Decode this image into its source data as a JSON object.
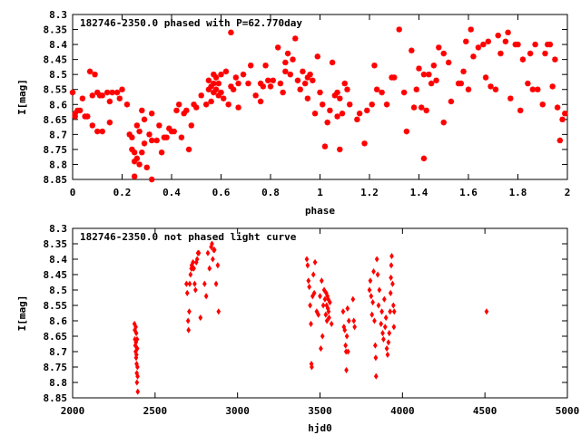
{
  "chart_data": [
    {
      "type": "scatter",
      "title": "182746-2350.0 phased with P=62.770day",
      "xlabel": "phase",
      "ylabel": "I[mag]",
      "xlim": [
        0,
        2
      ],
      "ylim": [
        8.85,
        8.3
      ],
      "y_inverted": true,
      "grid": false,
      "color": "#ff0000",
      "marker": "asterisk",
      "x_ticks": [
        "0",
        "0.2",
        "0.4",
        "0.6",
        "0.8",
        "1",
        "1.2",
        "1.4",
        "1.6",
        "1.8",
        "2"
      ],
      "y_ticks": [
        "8.3",
        "8.35",
        "8.4",
        "8.45",
        "8.5",
        "8.55",
        "8.6",
        "8.65",
        "8.7",
        "8.75",
        "8.8",
        "8.85"
      ],
      "points": [
        [
          0.0,
          8.56
        ],
        [
          0.01,
          8.64
        ],
        [
          0.01,
          8.63
        ],
        [
          0.02,
          8.62
        ],
        [
          0.03,
          8.62
        ],
        [
          0.04,
          8.58
        ],
        [
          0.05,
          8.64
        ],
        [
          0.06,
          8.64
        ],
        [
          0.07,
          8.49
        ],
        [
          0.08,
          8.57
        ],
        [
          0.08,
          8.67
        ],
        [
          0.09,
          8.5
        ],
        [
          0.1,
          8.56
        ],
        [
          0.1,
          8.69
        ],
        [
          0.11,
          8.57
        ],
        [
          0.12,
          8.69
        ],
        [
          0.12,
          8.57
        ],
        [
          0.14,
          8.56
        ],
        [
          0.15,
          8.59
        ],
        [
          0.15,
          8.66
        ],
        [
          0.16,
          8.56
        ],
        [
          0.18,
          8.56
        ],
        [
          0.19,
          8.58
        ],
        [
          0.2,
          8.55
        ],
        [
          0.22,
          8.6
        ],
        [
          0.23,
          8.7
        ],
        [
          0.24,
          8.71
        ],
        [
          0.24,
          8.75
        ],
        [
          0.25,
          8.76
        ],
        [
          0.25,
          8.79
        ],
        [
          0.25,
          8.84
        ],
        [
          0.26,
          8.67
        ],
        [
          0.26,
          8.78
        ],
        [
          0.27,
          8.8
        ],
        [
          0.27,
          8.69
        ],
        [
          0.28,
          8.62
        ],
        [
          0.28,
          8.76
        ],
        [
          0.29,
          8.65
        ],
        [
          0.29,
          8.73
        ],
        [
          0.3,
          8.81
        ],
        [
          0.31,
          8.7
        ],
        [
          0.32,
          8.63
        ],
        [
          0.32,
          8.72
        ],
        [
          0.32,
          8.85
        ],
        [
          0.34,
          8.72
        ],
        [
          0.35,
          8.67
        ],
        [
          0.36,
          8.76
        ],
        [
          0.37,
          8.71
        ],
        [
          0.38,
          8.71
        ],
        [
          0.39,
          8.68
        ],
        [
          0.4,
          8.69
        ],
        [
          0.41,
          8.69
        ],
        [
          0.42,
          8.62
        ],
        [
          0.43,
          8.6
        ],
        [
          0.44,
          8.71
        ],
        [
          0.45,
          8.63
        ],
        [
          0.46,
          8.62
        ],
        [
          0.47,
          8.75
        ],
        [
          0.48,
          8.67
        ],
        [
          0.49,
          8.6
        ],
        [
          0.5,
          8.61
        ],
        [
          0.52,
          8.57
        ],
        [
          0.54,
          8.6
        ],
        [
          0.55,
          8.55
        ],
        [
          0.55,
          8.52
        ],
        [
          0.56,
          8.59
        ],
        [
          0.56,
          8.54
        ],
        [
          0.57,
          8.53
        ],
        [
          0.57,
          8.56
        ],
        [
          0.57,
          8.5
        ],
        [
          0.58,
          8.55
        ],
        [
          0.58,
          8.51
        ],
        [
          0.59,
          8.57
        ],
        [
          0.59,
          8.53
        ],
        [
          0.6,
          8.5
        ],
        [
          0.6,
          8.56
        ],
        [
          0.61,
          8.58
        ],
        [
          0.62,
          8.49
        ],
        [
          0.63,
          8.6
        ],
        [
          0.64,
          8.36
        ],
        [
          0.64,
          8.54
        ],
        [
          0.65,
          8.55
        ],
        [
          0.66,
          8.51
        ],
        [
          0.67,
          8.53
        ],
        [
          0.67,
          8.61
        ],
        [
          0.69,
          8.5
        ],
        [
          0.71,
          8.53
        ],
        [
          0.72,
          8.47
        ],
        [
          0.74,
          8.57
        ],
        [
          0.76,
          8.53
        ],
        [
          0.76,
          8.59
        ],
        [
          0.77,
          8.54
        ],
        [
          0.78,
          8.47
        ],
        [
          0.79,
          8.52
        ],
        [
          0.8,
          8.54
        ],
        [
          0.81,
          8.52
        ],
        [
          0.83,
          8.41
        ],
        [
          0.84,
          8.53
        ],
        [
          0.85,
          8.56
        ],
        [
          0.86,
          8.46
        ],
        [
          0.86,
          8.49
        ],
        [
          0.87,
          8.43
        ],
        [
          0.88,
          8.5
        ],
        [
          0.89,
          8.45
        ],
        [
          0.9,
          8.38
        ],
        [
          0.91,
          8.52
        ],
        [
          0.92,
          8.55
        ],
        [
          0.93,
          8.49
        ],
        [
          0.94,
          8.53
        ],
        [
          0.95,
          8.51
        ],
        [
          0.95,
          8.58
        ],
        [
          0.96,
          8.5
        ],
        [
          0.97,
          8.52
        ],
        [
          0.98,
          8.63
        ],
        [
          0.99,
          8.44
        ],
        [
          1.0,
          8.56
        ],
        [
          1.01,
          8.6
        ],
        [
          1.02,
          8.74
        ],
        [
          1.03,
          8.66
        ],
        [
          1.04,
          8.62
        ],
        [
          1.05,
          8.46
        ],
        [
          1.06,
          8.57
        ],
        [
          1.07,
          8.56
        ],
        [
          1.07,
          8.64
        ],
        [
          1.08,
          8.58
        ],
        [
          1.08,
          8.75
        ],
        [
          1.09,
          8.63
        ],
        [
          1.1,
          8.53
        ],
        [
          1.11,
          8.55
        ],
        [
          1.12,
          8.6
        ],
        [
          1.15,
          8.65
        ],
        [
          1.16,
          8.63
        ],
        [
          1.18,
          8.73
        ],
        [
          1.19,
          8.62
        ],
        [
          1.21,
          8.6
        ],
        [
          1.22,
          8.47
        ],
        [
          1.23,
          8.55
        ],
        [
          1.25,
          8.56
        ],
        [
          1.27,
          8.6
        ],
        [
          1.29,
          8.51
        ],
        [
          1.3,
          8.51
        ],
        [
          1.32,
          8.35
        ],
        [
          1.34,
          8.56
        ],
        [
          1.35,
          8.69
        ],
        [
          1.37,
          8.42
        ],
        [
          1.38,
          8.61
        ],
        [
          1.39,
          8.55
        ],
        [
          1.4,
          8.48
        ],
        [
          1.41,
          8.61
        ],
        [
          1.42,
          8.5
        ],
        [
          1.42,
          8.78
        ],
        [
          1.43,
          8.62
        ],
        [
          1.44,
          8.5
        ],
        [
          1.45,
          8.53
        ],
        [
          1.46,
          8.47
        ],
        [
          1.47,
          8.52
        ],
        [
          1.48,
          8.41
        ],
        [
          1.5,
          8.66
        ],
        [
          1.5,
          8.43
        ],
        [
          1.52,
          8.46
        ],
        [
          1.53,
          8.59
        ],
        [
          1.56,
          8.53
        ],
        [
          1.57,
          8.53
        ],
        [
          1.58,
          8.49
        ],
        [
          1.59,
          8.39
        ],
        [
          1.6,
          8.55
        ],
        [
          1.61,
          8.35
        ],
        [
          1.62,
          8.44
        ],
        [
          1.64,
          8.41
        ],
        [
          1.66,
          8.4
        ],
        [
          1.67,
          8.51
        ],
        [
          1.68,
          8.39
        ],
        [
          1.69,
          8.54
        ],
        [
          1.71,
          8.55
        ],
        [
          1.72,
          8.37
        ],
        [
          1.73,
          8.43
        ],
        [
          1.75,
          8.39
        ],
        [
          1.76,
          8.36
        ],
        [
          1.77,
          8.58
        ],
        [
          1.79,
          8.4
        ],
        [
          1.8,
          8.4
        ],
        [
          1.81,
          8.62
        ],
        [
          1.82,
          8.45
        ],
        [
          1.84,
          8.53
        ],
        [
          1.85,
          8.43
        ],
        [
          1.86,
          8.55
        ],
        [
          1.87,
          8.4
        ],
        [
          1.88,
          8.55
        ],
        [
          1.9,
          8.6
        ],
        [
          1.91,
          8.43
        ],
        [
          1.92,
          8.4
        ],
        [
          1.93,
          8.4
        ],
        [
          1.94,
          8.54
        ],
        [
          1.95,
          8.45
        ],
        [
          1.96,
          8.61
        ],
        [
          1.97,
          8.72
        ],
        [
          1.98,
          8.65
        ],
        [
          1.99,
          8.63
        ]
      ]
    },
    {
      "type": "scatter",
      "title": "182746-2350.0 not phased light curve",
      "xlabel": "hjd0",
      "ylabel": "I[mag]",
      "xlim": [
        2000,
        5000
      ],
      "ylim": [
        8.85,
        8.3
      ],
      "y_inverted": true,
      "grid": false,
      "color": "#ff0000",
      "marker": "diamond",
      "x_ticks": [
        "2000",
        "2500",
        "3000",
        "3500",
        "4000",
        "4500",
        "5000"
      ],
      "y_ticks": [
        "8.3",
        "8.35",
        "8.4",
        "8.45",
        "8.5",
        "8.55",
        "8.6",
        "8.65",
        "8.7",
        "8.75",
        "8.8",
        "8.85"
      ],
      "points": [
        [
          2375,
          8.61
        ],
        [
          2377,
          8.63
        ],
        [
          2378,
          8.66
        ],
        [
          2380,
          8.68
        ],
        [
          2382,
          8.7
        ],
        [
          2383,
          8.62
        ],
        [
          2385,
          8.72
        ],
        [
          2386,
          8.64
        ],
        [
          2388,
          8.74
        ],
        [
          2389,
          8.77
        ],
        [
          2390,
          8.8
        ],
        [
          2391,
          8.66
        ],
        [
          2392,
          8.69
        ],
        [
          2393,
          8.75
        ],
        [
          2394,
          8.78
        ],
        [
          2395,
          8.83
        ],
        [
          2384,
          8.67
        ],
        [
          2387,
          8.71
        ],
        [
          2690,
          8.48
        ],
        [
          2695,
          8.51
        ],
        [
          2700,
          8.6
        ],
        [
          2703,
          8.63
        ],
        [
          2707,
          8.57
        ],
        [
          2710,
          8.48
        ],
        [
          2715,
          8.45
        ],
        [
          2720,
          8.43
        ],
        [
          2722,
          8.42
        ],
        [
          2725,
          8.43
        ],
        [
          2730,
          8.41
        ],
        [
          2735,
          8.43
        ],
        [
          2740,
          8.48
        ],
        [
          2745,
          8.5
        ],
        [
          2750,
          8.41
        ],
        [
          2755,
          8.4
        ],
        [
          2760,
          8.38
        ],
        [
          2765,
          8.38
        ],
        [
          2775,
          8.59
        ],
        [
          2800,
          8.48
        ],
        [
          2810,
          8.52
        ],
        [
          2820,
          8.38
        ],
        [
          2830,
          8.43
        ],
        [
          2840,
          8.36
        ],
        [
          2845,
          8.35
        ],
        [
          2850,
          8.4
        ],
        [
          2855,
          8.37
        ],
        [
          2860,
          8.37
        ],
        [
          2870,
          8.48
        ],
        [
          2880,
          8.42
        ],
        [
          2885,
          8.57
        ],
        [
          3420,
          8.4
        ],
        [
          3425,
          8.42
        ],
        [
          3430,
          8.47
        ],
        [
          3435,
          8.49
        ],
        [
          3440,
          8.55
        ],
        [
          3445,
          8.61
        ],
        [
          3448,
          8.74
        ],
        [
          3450,
          8.75
        ],
        [
          3455,
          8.52
        ],
        [
          3460,
          8.45
        ],
        [
          3465,
          8.51
        ],
        [
          3470,
          8.41
        ],
        [
          3480,
          8.57
        ],
        [
          3490,
          8.58
        ],
        [
          3500,
          8.52
        ],
        [
          3505,
          8.69
        ],
        [
          3510,
          8.47
        ],
        [
          3515,
          8.65
        ],
        [
          3520,
          8.55
        ],
        [
          3525,
          8.5
        ],
        [
          3530,
          8.53
        ],
        [
          3535,
          8.58
        ],
        [
          3538,
          8.51
        ],
        [
          3540,
          8.55
        ],
        [
          3542,
          8.6
        ],
        [
          3545,
          8.52
        ],
        [
          3548,
          8.56
        ],
        [
          3550,
          8.53
        ],
        [
          3552,
          8.57
        ],
        [
          3555,
          8.59
        ],
        [
          3560,
          8.54
        ],
        [
          3570,
          8.61
        ],
        [
          3640,
          8.57
        ],
        [
          3645,
          8.62
        ],
        [
          3650,
          8.63
        ],
        [
          3655,
          8.68
        ],
        [
          3658,
          8.7
        ],
        [
          3660,
          8.76
        ],
        [
          3663,
          8.65
        ],
        [
          3667,
          8.56
        ],
        [
          3670,
          8.7
        ],
        [
          3675,
          8.6
        ],
        [
          3700,
          8.53
        ],
        [
          3705,
          8.6
        ],
        [
          3710,
          8.62
        ],
        [
          3800,
          8.5
        ],
        [
          3805,
          8.47
        ],
        [
          3810,
          8.52
        ],
        [
          3815,
          8.58
        ],
        [
          3820,
          8.54
        ],
        [
          3825,
          8.44
        ],
        [
          3830,
          8.6
        ],
        [
          3835,
          8.68
        ],
        [
          3838,
          8.72
        ],
        [
          3840,
          8.78
        ],
        [
          3845,
          8.4
        ],
        [
          3850,
          8.45
        ],
        [
          3855,
          8.55
        ],
        [
          3860,
          8.5
        ],
        [
          3870,
          8.61
        ],
        [
          3875,
          8.57
        ],
        [
          3880,
          8.64
        ],
        [
          3885,
          8.66
        ],
        [
          3890,
          8.53
        ],
        [
          3895,
          8.62
        ],
        [
          3900,
          8.59
        ],
        [
          3905,
          8.69
        ],
        [
          3910,
          8.71
        ],
        [
          3915,
          8.67
        ],
        [
          3920,
          8.64
        ],
        [
          3925,
          8.57
        ],
        [
          3928,
          8.51
        ],
        [
          3930,
          8.46
        ],
        [
          3932,
          8.42
        ],
        [
          3935,
          8.39
        ],
        [
          3940,
          8.48
        ],
        [
          3945,
          8.55
        ],
        [
          3948,
          8.62
        ],
        [
          3950,
          8.57
        ],
        [
          4510,
          8.57
        ]
      ]
    }
  ]
}
